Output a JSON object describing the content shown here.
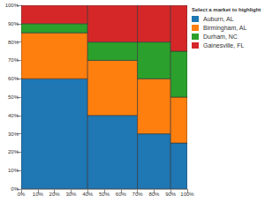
{
  "chart_data": {
    "type": "marimekko",
    "stacked": true,
    "grid": false,
    "legend": "top-right",
    "legend_title": "Select a market to highlight",
    "widths": [
      40,
      30,
      20,
      10
    ],
    "series": [
      {
        "name": "Auburn, AL",
        "color": "#1f77b4",
        "values": [
          60,
          40,
          30,
          25
        ]
      },
      {
        "name": "Birmingham, AL",
        "color": "#ff7f0e",
        "values": [
          25,
          30,
          30,
          25
        ]
      },
      {
        "name": "Durham, NC",
        "color": "#2ca02c",
        "values": [
          5,
          10,
          20,
          25
        ]
      },
      {
        "name": "Gainesville, FL",
        "color": "#d62728",
        "values": [
          10,
          20,
          20,
          25
        ]
      }
    ],
    "xlim": [
      0,
      100
    ],
    "xticks": [
      {
        "value": 0,
        "label": "0%"
      },
      {
        "value": 10,
        "label": "10%"
      },
      {
        "value": 20,
        "label": "20%"
      },
      {
        "value": 30,
        "label": "30%"
      },
      {
        "value": 40,
        "label": "40%"
      },
      {
        "value": 50,
        "label": "50%"
      },
      {
        "value": 60,
        "label": "60%"
      },
      {
        "value": 70,
        "label": "70%"
      },
      {
        "value": 80,
        "label": "80%"
      },
      {
        "value": 90,
        "label": "90%"
      },
      {
        "value": 100,
        "label": "100%"
      }
    ],
    "ylim": [
      0,
      100
    ],
    "yticks": [
      {
        "value": 0,
        "label": "0%"
      },
      {
        "value": 10,
        "label": "10%"
      },
      {
        "value": 20,
        "label": "20%"
      },
      {
        "value": 30,
        "label": "30%"
      },
      {
        "value": 40,
        "label": "40%"
      },
      {
        "value": 50,
        "label": "50%"
      },
      {
        "value": 60,
        "label": "60%"
      },
      {
        "value": 70,
        "label": "70%"
      },
      {
        "value": 80,
        "label": "80%"
      },
      {
        "value": 90,
        "label": "90%"
      },
      {
        "value": 100,
        "label": "100%"
      }
    ]
  }
}
